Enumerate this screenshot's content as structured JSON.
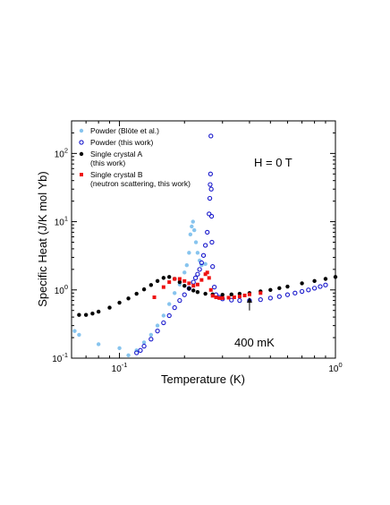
{
  "chart_data": {
    "type": "scatter",
    "title": "",
    "xlabel": "Temperature (K)",
    "ylabel": "Specific Heat (J/K mol Yb)",
    "xscale": "log",
    "yscale": "log",
    "xlim": [
      0.06,
      1.0
    ],
    "ylim": [
      0.1,
      300
    ],
    "grid": false,
    "legend_position": "top-left",
    "x_ticks": [
      {
        "value": 0.1,
        "base": "10",
        "exp": "-1"
      },
      {
        "value": 1.0,
        "base": "10",
        "exp": "0"
      }
    ],
    "y_ticks": [
      {
        "value": 0.1,
        "base": "10",
        "exp": "-1"
      },
      {
        "value": 1,
        "base": "10",
        "exp": "0"
      },
      {
        "value": 10,
        "base": "10",
        "exp": "1"
      },
      {
        "value": 100,
        "base": "10",
        "exp": "2"
      }
    ],
    "annotations": {
      "field": "H = 0 T",
      "arrow_label": "400 mK",
      "arrow_x": 0.4,
      "arrow_from_y": 0.5,
      "arrow_to_y": 0.78
    },
    "series": [
      {
        "name": "Powder (Blöte et al.)",
        "color": "#87c4ee",
        "marker": "filled-circle",
        "x": [
          0.062,
          0.065,
          0.08,
          0.1,
          0.11,
          0.12,
          0.13,
          0.14,
          0.15,
          0.16,
          0.17,
          0.18,
          0.19,
          0.2,
          0.205,
          0.21,
          0.213,
          0.216,
          0.219,
          0.222,
          0.226,
          0.23,
          0.235,
          0.24,
          0.25
        ],
        "y": [
          0.25,
          0.22,
          0.16,
          0.14,
          0.11,
          0.13,
          0.17,
          0.22,
          0.3,
          0.42,
          0.62,
          0.9,
          1.2,
          1.8,
          2.3,
          3.5,
          6.5,
          8.5,
          10.0,
          7.5,
          5.0,
          3.5,
          2.7,
          2.3,
          2.4
        ]
      },
      {
        "name": "Powder (this work)",
        "color": "#1a1acc",
        "marker": "open-circle",
        "x": [
          0.12,
          0.125,
          0.13,
          0.14,
          0.15,
          0.16,
          0.17,
          0.18,
          0.19,
          0.2,
          0.21,
          0.22,
          0.225,
          0.23,
          0.235,
          0.24,
          0.245,
          0.25,
          0.255,
          0.26,
          0.262,
          0.263,
          0.264,
          0.265,
          0.266,
          0.267,
          0.268,
          0.27,
          0.275,
          0.28,
          0.29,
          0.3,
          0.33,
          0.36,
          0.4,
          0.45,
          0.5,
          0.55,
          0.6,
          0.65,
          0.7,
          0.75,
          0.8,
          0.85,
          0.9
        ],
        "y": [
          0.12,
          0.13,
          0.15,
          0.19,
          0.25,
          0.33,
          0.42,
          0.55,
          0.7,
          0.85,
          1.05,
          1.3,
          1.5,
          1.7,
          2.0,
          2.5,
          3.2,
          4.5,
          7.0,
          13.0,
          22.0,
          35.0,
          50.0,
          180.0,
          30.0,
          12.0,
          5.0,
          2.2,
          1.1,
          0.85,
          0.78,
          0.74,
          0.71,
          0.7,
          0.7,
          0.72,
          0.76,
          0.8,
          0.85,
          0.9,
          0.95,
          1.0,
          1.06,
          1.12,
          1.18
        ]
      },
      {
        "name": "Single crystal A (this work)",
        "color": "#000000",
        "marker": "filled-circle",
        "x": [
          0.065,
          0.07,
          0.075,
          0.08,
          0.09,
          0.1,
          0.11,
          0.12,
          0.13,
          0.14,
          0.15,
          0.16,
          0.17,
          0.18,
          0.19,
          0.2,
          0.21,
          0.22,
          0.23,
          0.25,
          0.27,
          0.3,
          0.33,
          0.36,
          0.4,
          0.45,
          0.5,
          0.55,
          0.6,
          0.7,
          0.8,
          0.9,
          1.0
        ],
        "y": [
          0.43,
          0.43,
          0.45,
          0.48,
          0.55,
          0.65,
          0.75,
          0.88,
          1.02,
          1.18,
          1.35,
          1.5,
          1.55,
          1.45,
          1.3,
          1.15,
          1.05,
          0.98,
          0.93,
          0.88,
          0.86,
          0.85,
          0.86,
          0.88,
          0.9,
          0.95,
          1.0,
          1.06,
          1.12,
          1.25,
          1.35,
          1.45,
          1.55
        ]
      },
      {
        "name": "Single crystal B (neutron scattering, this work)",
        "color": "#ee1111",
        "marker": "filled-square",
        "x": [
          0.145,
          0.16,
          0.17,
          0.18,
          0.19,
          0.2,
          0.21,
          0.22,
          0.23,
          0.24,
          0.25,
          0.255,
          0.26,
          0.265,
          0.27,
          0.28,
          0.29,
          0.3,
          0.32,
          0.34,
          0.36,
          0.38,
          0.4,
          0.45
        ],
        "y": [
          0.78,
          1.1,
          1.3,
          1.45,
          1.45,
          1.35,
          1.25,
          1.15,
          1.2,
          1.4,
          1.7,
          1.8,
          1.5,
          1.0,
          0.82,
          0.78,
          0.76,
          0.76,
          0.77,
          0.78,
          0.8,
          0.83,
          0.86,
          0.9
        ]
      }
    ]
  }
}
